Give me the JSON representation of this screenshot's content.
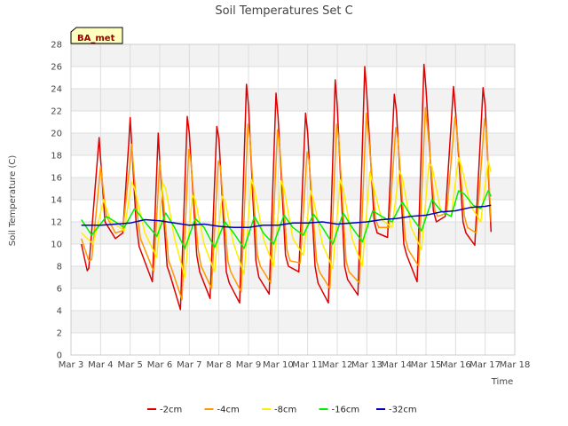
{
  "chart_data": {
    "type": "line",
    "title": "Soil Temperatures Set C",
    "xlabel": "Time",
    "ylabel": "Soil Temperature (C)",
    "badge": "BA_met",
    "xlim": [
      3,
      18
    ],
    "ylim": [
      0,
      28
    ],
    "x_ticks": [
      {
        "v": 3,
        "label": "Mar 3"
      },
      {
        "v": 4,
        "label": "Mar 4"
      },
      {
        "v": 5,
        "label": "Mar 5"
      },
      {
        "v": 6,
        "label": "Mar 6"
      },
      {
        "v": 7,
        "label": "Mar 7"
      },
      {
        "v": 8,
        "label": "Mar 8"
      },
      {
        "v": 9,
        "label": "Mar 9"
      },
      {
        "v": 10,
        "label": "Mar 10"
      },
      {
        "v": 11,
        "label": "Mar 11"
      },
      {
        "v": 12,
        "label": "Mar 12"
      },
      {
        "v": 13,
        "label": "Mar 13"
      },
      {
        "v": 14,
        "label": "Mar 14"
      },
      {
        "v": 15,
        "label": "Mar 15"
      },
      {
        "v": 16,
        "label": "Mar 16"
      },
      {
        "v": 17,
        "label": "Mar 17"
      },
      {
        "v": 18,
        "label": "Mar 18"
      }
    ],
    "y_ticks": [
      {
        "v": 0,
        "label": "0"
      },
      {
        "v": 2,
        "label": "2"
      },
      {
        "v": 4,
        "label": "4"
      },
      {
        "v": 6,
        "label": "6"
      },
      {
        "v": 8,
        "label": "8"
      },
      {
        "v": 10,
        "label": "10"
      },
      {
        "v": 12,
        "label": "12"
      },
      {
        "v": 14,
        "label": "14"
      },
      {
        "v": 16,
        "label": "16"
      },
      {
        "v": 18,
        "label": "18"
      },
      {
        "v": 20,
        "label": "20"
      },
      {
        "v": 22,
        "label": "22"
      },
      {
        "v": 24,
        "label": "24"
      },
      {
        "v": 26,
        "label": "26"
      },
      {
        "v": 28,
        "label": "28"
      }
    ],
    "grid": true,
    "legend_position": "bottom",
    "series": [
      {
        "name": "-2cm",
        "color": "#dd0000",
        "x": [
          3.35,
          3.55,
          3.6,
          3.95,
          4.15,
          4.5,
          4.75,
          4.95,
          5.0,
          5.2,
          5.3,
          5.75,
          5.95,
          6.0,
          6.25,
          6.35,
          6.7,
          6.93,
          7.0,
          7.25,
          7.35,
          7.7,
          7.93,
          8.0,
          8.25,
          8.35,
          8.7,
          8.93,
          9.0,
          9.25,
          9.35,
          9.7,
          9.93,
          10.0,
          10.25,
          10.35,
          10.7,
          10.93,
          11.0,
          11.25,
          11.35,
          11.7,
          11.93,
          12.0,
          12.25,
          12.35,
          12.7,
          12.93,
          13.0,
          13.25,
          13.35,
          13.7,
          13.93,
          14.0,
          14.25,
          14.35,
          14.7,
          14.93,
          15.0,
          15.25,
          15.35,
          15.65,
          15.93,
          16.0,
          16.25,
          16.35,
          16.65,
          16.93,
          17.0,
          17.2
        ],
        "y": [
          10.0,
          7.6,
          7.8,
          19.6,
          12.0,
          10.5,
          11.0,
          19.0,
          21.4,
          12.0,
          9.8,
          6.6,
          20.0,
          17.5,
          8.0,
          7.2,
          4.1,
          21.5,
          20.0,
          9.0,
          7.5,
          5.1,
          20.6,
          19.5,
          7.5,
          6.5,
          4.7,
          24.4,
          22.5,
          8.5,
          7.0,
          5.5,
          23.6,
          21.5,
          9.0,
          8.0,
          7.5,
          21.8,
          20.0,
          8.0,
          6.5,
          4.7,
          24.8,
          22.5,
          8.0,
          6.8,
          5.4,
          26.0,
          23.5,
          12.0,
          11.0,
          10.6,
          23.5,
          22.0,
          10.0,
          9.0,
          6.6,
          26.2,
          24.0,
          13.0,
          12.0,
          12.5,
          24.2,
          22.0,
          12.0,
          11.0,
          9.9,
          24.1,
          22.5,
          11.1
        ]
      },
      {
        "name": "-4cm",
        "color": "#ff9900",
        "x": [
          3.35,
          3.6,
          3.7,
          4.0,
          4.2,
          4.5,
          4.75,
          5.0,
          5.05,
          5.25,
          5.35,
          5.8,
          6.0,
          6.05,
          6.3,
          6.4,
          6.75,
          6.98,
          7.05,
          7.3,
          7.4,
          7.75,
          7.98,
          8.05,
          8.3,
          8.4,
          8.75,
          8.98,
          9.05,
          9.3,
          9.4,
          9.75,
          9.98,
          10.05,
          10.3,
          10.4,
          10.75,
          10.98,
          11.05,
          11.3,
          11.4,
          11.75,
          11.98,
          12.05,
          12.3,
          12.4,
          12.75,
          12.98,
          13.05,
          13.3,
          13.4,
          13.75,
          13.98,
          14.05,
          14.3,
          14.4,
          14.75,
          14.98,
          15.05,
          15.3,
          15.4,
          15.7,
          15.98,
          16.05,
          16.3,
          16.4,
          16.7,
          16.98,
          17.05,
          17.2
        ],
        "y": [
          10.5,
          8.5,
          8.6,
          17.0,
          12.5,
          11.0,
          11.2,
          17.5,
          19.0,
          12.5,
          10.5,
          7.5,
          17.5,
          16.0,
          8.5,
          7.8,
          5.0,
          18.5,
          17.5,
          9.5,
          8.0,
          6.0,
          17.5,
          17.0,
          8.5,
          7.5,
          5.7,
          20.8,
          19.5,
          9.0,
          8.0,
          6.5,
          20.3,
          19.0,
          9.5,
          8.5,
          8.3,
          18.3,
          17.5,
          8.5,
          7.5,
          6.0,
          20.8,
          19.5,
          8.5,
          7.5,
          6.5,
          21.8,
          20.0,
          12.2,
          11.5,
          11.5,
          20.5,
          19.5,
          10.5,
          9.5,
          8.0,
          22.3,
          20.5,
          13.0,
          12.5,
          12.8,
          21.5,
          20.0,
          12.5,
          11.5,
          11.0,
          21.3,
          20.0,
          12.0
        ]
      },
      {
        "name": "-8cm",
        "color": "#ffee00",
        "x": [
          3.35,
          3.75,
          4.1,
          4.35,
          4.65,
          4.8,
          5.05,
          5.15,
          5.5,
          5.9,
          6.1,
          6.2,
          6.5,
          6.85,
          7.1,
          7.2,
          7.5,
          7.85,
          8.1,
          8.2,
          8.5,
          8.85,
          9.1,
          9.2,
          9.5,
          9.85,
          10.1,
          10.2,
          10.5,
          10.85,
          11.1,
          11.2,
          11.5,
          11.85,
          12.1,
          12.2,
          12.5,
          12.85,
          13.1,
          13.2,
          13.5,
          13.85,
          14.1,
          14.2,
          14.5,
          14.85,
          15.1,
          15.2,
          15.5,
          15.85,
          16.1,
          16.2,
          16.5,
          16.85,
          17.1,
          17.2
        ],
        "y": [
          11.0,
          10.0,
          14.0,
          12.0,
          11.5,
          11.2,
          15.6,
          15.0,
          11.0,
          8.8,
          15.5,
          15.0,
          10.5,
          7.0,
          14.4,
          14.0,
          10.0,
          7.5,
          14.3,
          14.0,
          10.0,
          7.3,
          15.8,
          15.0,
          10.5,
          8.0,
          15.7,
          15.0,
          10.5,
          9.0,
          14.8,
          14.0,
          10.0,
          7.8,
          15.8,
          15.0,
          10.5,
          8.0,
          16.5,
          15.5,
          12.2,
          11.5,
          16.6,
          16.0,
          11.5,
          9.5,
          17.3,
          17.0,
          13.0,
          12.5,
          17.8,
          17.0,
          13.5,
          12.0,
          17.5,
          16.5
        ]
      },
      {
        "name": "-16cm",
        "color": "#00ee00",
        "x": [
          3.35,
          3.7,
          4.2,
          4.5,
          4.8,
          5.15,
          5.5,
          5.9,
          6.2,
          6.5,
          6.85,
          7.2,
          7.5,
          7.85,
          8.2,
          8.5,
          8.85,
          9.2,
          9.5,
          9.85,
          10.2,
          10.5,
          10.85,
          11.2,
          11.5,
          11.85,
          12.2,
          12.5,
          12.85,
          13.2,
          13.5,
          13.85,
          14.2,
          14.5,
          14.85,
          15.2,
          15.5,
          15.85,
          16.1,
          16.3,
          16.6,
          16.85,
          17.1,
          17.2
        ],
        "y": [
          12.2,
          10.8,
          12.5,
          12.0,
          11.5,
          13.2,
          12.0,
          10.7,
          12.8,
          11.5,
          9.6,
          12.3,
          11.5,
          9.7,
          12.0,
          11.0,
          9.6,
          12.5,
          11.0,
          10.0,
          12.6,
          11.5,
          10.8,
          12.7,
          11.5,
          10.0,
          12.8,
          11.5,
          10.2,
          13.0,
          12.5,
          12.0,
          13.8,
          12.5,
          11.2,
          14.0,
          13.0,
          12.5,
          14.8,
          14.5,
          13.5,
          13.2,
          14.8,
          14.3
        ]
      },
      {
        "name": "-32cm",
        "color": "#0000bb",
        "x": [
          3.35,
          4.0,
          5.0,
          5.5,
          6.0,
          6.5,
          7.0,
          7.5,
          8.0,
          8.5,
          9.0,
          9.5,
          10.0,
          10.5,
          11.0,
          11.5,
          12.0,
          12.5,
          13.0,
          13.5,
          14.0,
          14.5,
          15.0,
          15.5,
          16.0,
          16.5,
          17.0,
          17.2
        ],
        "y": [
          11.7,
          11.7,
          11.9,
          12.2,
          12.1,
          11.9,
          11.7,
          11.8,
          11.6,
          11.5,
          11.5,
          11.7,
          11.7,
          11.9,
          11.9,
          12.0,
          11.8,
          11.9,
          12.0,
          12.2,
          12.3,
          12.5,
          12.6,
          12.9,
          13.0,
          13.3,
          13.4,
          13.5
        ]
      }
    ]
  }
}
